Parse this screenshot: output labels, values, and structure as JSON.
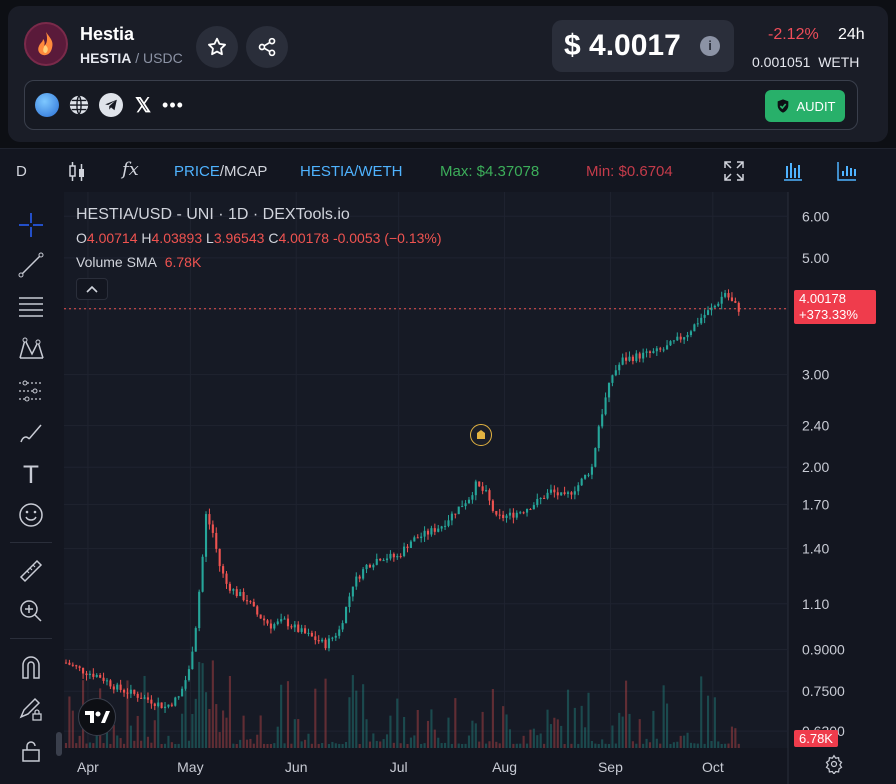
{
  "header": {
    "token_name": "Hestia",
    "pair_base": "HESTIA",
    "pair_sep": " / ",
    "pair_quote": "USDC",
    "price": "$ 4.0017",
    "change": "-2.12%",
    "period": "24h",
    "weth_price": "0.001051",
    "weth_label": "WETH",
    "audit_label": "AUDIT",
    "icons": [
      "star-icon",
      "share-icon",
      "info-icon"
    ],
    "links": [
      "logo-link-icon",
      "globe-icon",
      "telegram-icon",
      "x-icon",
      "more-icon"
    ]
  },
  "toolbar": {
    "interval": "D",
    "fx": "fx",
    "price_label": "PRICE",
    "slash": "/",
    "mcap_label": "MCAP",
    "pair_toggle": "HESTIA/WETH",
    "max": "Max: $4.37078",
    "min": "Min: $0.6704"
  },
  "legend": {
    "title": "HESTIA/USD - UNI · 1D · DEXTools.io",
    "o_label": "O",
    "o": "4.00714",
    "h_label": "H",
    "h": "4.03893",
    "l_label": "L",
    "l": "3.96543",
    "c_label": "C",
    "c": "4.00178",
    "chg": "-0.0053 (−0.13%)",
    "vol_label": "Volume SMA",
    "vol": "6.78K"
  },
  "price_pill": {
    "value": "4.00178",
    "pct": "+373.33%"
  },
  "vol_pill": "6.78K",
  "colors": {
    "up": "#26a69a",
    "down": "#ef5350",
    "accent": "#2962ff"
  },
  "chart_data": {
    "type": "candlestick",
    "y_scale": "log",
    "y_ticks": [
      "6.00",
      "5.00",
      "4.00",
      "3.00",
      "2.40",
      "2.00",
      "1.70",
      "1.40",
      "1.10",
      "0.9000",
      "0.7500",
      "0.6300"
    ],
    "y_tick_values": [
      6.0,
      5.0,
      4.0,
      3.0,
      2.4,
      2.0,
      1.7,
      1.4,
      1.1,
      0.9,
      0.75,
      0.63
    ],
    "ylim": [
      0.585,
      6.5
    ],
    "x_ticks": [
      "Apr",
      "May",
      "Jun",
      "Jul",
      "Aug",
      "Sep",
      "Oct"
    ],
    "x_tick_days": [
      7,
      37,
      68,
      98,
      129,
      160,
      190
    ],
    "days_total": 212,
    "close_path": [
      [
        0,
        0.85
      ],
      [
        5,
        0.82
      ],
      [
        10,
        0.8
      ],
      [
        15,
        0.76
      ],
      [
        20,
        0.74
      ],
      [
        25,
        0.72
      ],
      [
        29,
        0.7
      ],
      [
        33,
        0.73
      ],
      [
        36,
        0.82
      ],
      [
        38,
        1.0
      ],
      [
        40,
        1.35
      ],
      [
        41,
        1.62
      ],
      [
        43,
        1.5
      ],
      [
        45,
        1.3
      ],
      [
        47,
        1.2
      ],
      [
        50,
        1.15
      ],
      [
        53,
        1.12
      ],
      [
        56,
        1.05
      ],
      [
        60,
        1.0
      ],
      [
        64,
        1.02
      ],
      [
        68,
        0.98
      ],
      [
        72,
        0.95
      ],
      [
        76,
        0.92
      ],
      [
        80,
        0.98
      ],
      [
        82,
        1.08
      ],
      [
        84,
        1.2
      ],
      [
        88,
        1.3
      ],
      [
        92,
        1.35
      ],
      [
        97,
        1.35
      ],
      [
        101,
        1.45
      ],
      [
        106,
        1.5
      ],
      [
        110,
        1.55
      ],
      [
        114,
        1.65
      ],
      [
        118,
        1.75
      ],
      [
        120,
        1.85
      ],
      [
        123,
        1.78
      ],
      [
        126,
        1.6
      ],
      [
        130,
        1.62
      ],
      [
        134,
        1.66
      ],
      [
        138,
        1.72
      ],
      [
        142,
        1.8
      ],
      [
        146,
        1.75
      ],
      [
        150,
        1.85
      ],
      [
        154,
        2.0
      ],
      [
        156,
        2.4
      ],
      [
        158,
        2.7
      ],
      [
        160,
        3.0
      ],
      [
        163,
        3.2
      ],
      [
        167,
        3.25
      ],
      [
        172,
        3.3
      ],
      [
        175,
        3.35
      ],
      [
        178,
        3.45
      ],
      [
        182,
        3.6
      ],
      [
        186,
        3.85
      ],
      [
        190,
        4.05
      ],
      [
        193,
        4.3
      ],
      [
        195,
        4.12
      ],
      [
        197,
        4.0
      ]
    ],
    "volume_sma": "6.78K",
    "last_close": 4.00178
  }
}
